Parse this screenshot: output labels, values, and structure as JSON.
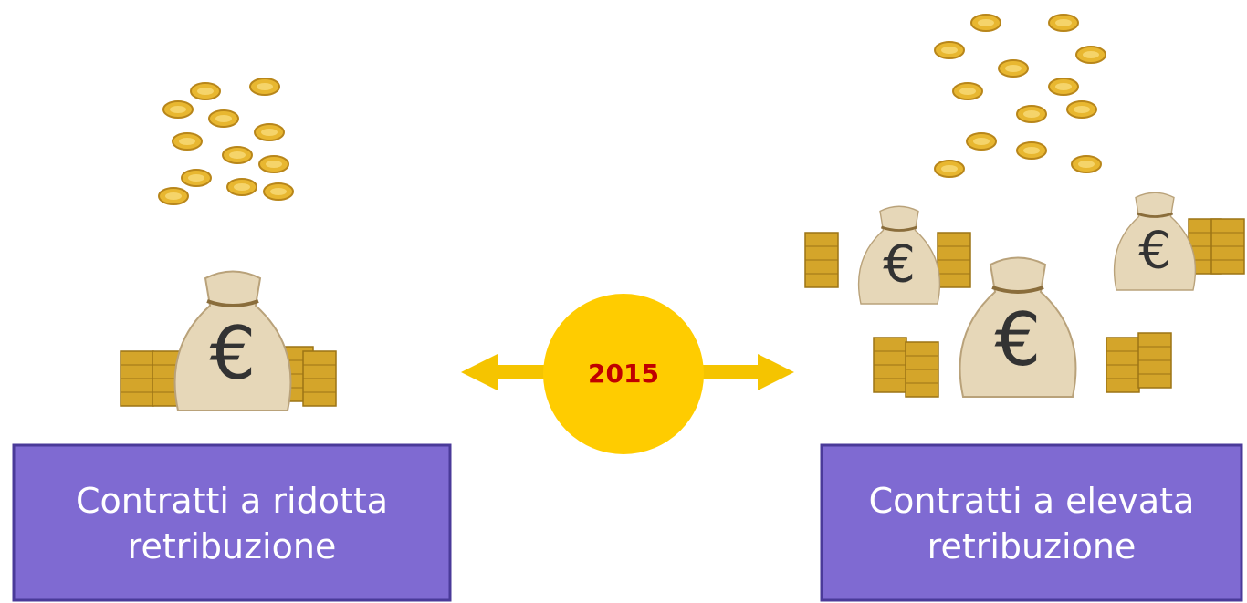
{
  "center": {
    "label": "2015"
  },
  "left": {
    "lines": [
      "Contratti a ridotta",
      "retribuzione"
    ]
  },
  "right": {
    "lines": [
      "Contratti a elevata",
      "retribuzione"
    ]
  }
}
